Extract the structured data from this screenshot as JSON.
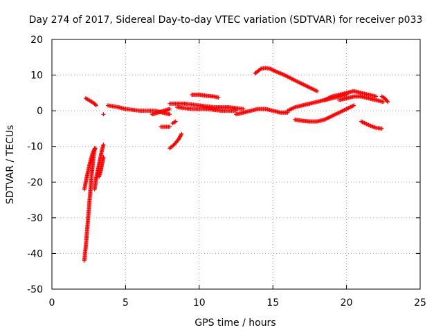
{
  "chart_data": {
    "type": "scatter",
    "title": "Day 274 of 2017, Sidereal Day-to-day VTEC variation (SDTVAR) for receiver p033",
    "xlabel": "GPS time / hours",
    "ylabel": "SDTVAR / TECUs",
    "xlim": [
      0,
      25
    ],
    "ylim": [
      -50,
      20
    ],
    "xticks": [
      "0",
      "5",
      "10",
      "15",
      "20",
      "25"
    ],
    "yticks": [
      "20",
      "10",
      "0",
      "-10",
      "-20",
      "-30",
      "-40",
      "-50"
    ],
    "grid": true,
    "legend": "none",
    "marker": "plus",
    "color": "#ff0000",
    "segments": [
      {
        "x": [
          2.2,
          2.3,
          2.4,
          2.5,
          2.6,
          2.7,
          2.8,
          2.9
        ],
        "y": [
          -42,
          -38,
          -33,
          -28,
          -23,
          -18,
          -14,
          -10.5
        ]
      },
      {
        "x": [
          2.2,
          2.35,
          2.5,
          2.65,
          2.8,
          2.95
        ],
        "y": [
          -22,
          -19,
          -16,
          -13.5,
          -11.5,
          -10.5
        ]
      },
      {
        "x": [
          2.9,
          3.0,
          3.1,
          3.2,
          3.3,
          3.4,
          3.5
        ],
        "y": [
          -22,
          -19,
          -17,
          -15,
          -13,
          -11,
          -9.5
        ]
      },
      {
        "x": [
          3.2,
          3.3,
          3.4,
          3.5
        ],
        "y": [
          -18.5,
          -17,
          -15,
          -13
        ]
      },
      {
        "x": [
          3.5
        ],
        "y": [
          -1
        ]
      },
      {
        "x": [
          2.3,
          2.5,
          2.7,
          2.9,
          3.0
        ],
        "y": [
          3.5,
          3,
          2.5,
          2,
          1.5
        ]
      },
      {
        "x": [
          3.8,
          4.5,
          5.0,
          6.0,
          7.0,
          7.5,
          8.0
        ],
        "y": [
          1.5,
          1,
          0.5,
          0,
          0,
          -0.5,
          -1
        ]
      },
      {
        "x": [
          6.8,
          7.2,
          7.6,
          8.0
        ],
        "y": [
          -1,
          -0.5,
          0,
          0.5
        ]
      },
      {
        "x": [
          7.4,
          7.7,
          8.0
        ],
        "y": [
          -4.5,
          -4.5,
          -4.5
        ]
      },
      {
        "x": [
          8.0,
          8.3,
          8.6,
          8.8
        ],
        "y": [
          -10.5,
          -9.5,
          -8,
          -6.5
        ]
      },
      {
        "x": [
          8.2,
          8.4
        ],
        "y": [
          -3.5,
          -3
        ]
      },
      {
        "x": [
          8.0,
          9.0,
          10.0,
          11.0,
          12.0,
          13.0
        ],
        "y": [
          2,
          2,
          1.5,
          1,
          1,
          0.5
        ]
      },
      {
        "x": [
          8.5,
          9.5,
          10.5,
          11.5,
          12.5
        ],
        "y": [
          1,
          0.5,
          0.5,
          0,
          0
        ]
      },
      {
        "x": [
          9.5,
          10.0,
          10.5,
          11.0,
          11.3
        ],
        "y": [
          4.5,
          4.5,
          4.2,
          4,
          3.7
        ]
      },
      {
        "x": [
          12.5,
          13.0,
          13.5,
          14.0,
          14.5,
          15.0,
          15.5,
          16.0
        ],
        "y": [
          -1,
          -0.5,
          0,
          0.5,
          0.5,
          0,
          -0.5,
          -0.5
        ]
      },
      {
        "x": [
          13.8,
          14.2,
          14.5,
          14.8,
          15.2,
          15.8,
          16.5,
          17.0,
          17.5,
          18.0
        ],
        "y": [
          10.5,
          11.8,
          12,
          11.8,
          11,
          10,
          8.5,
          7.5,
          6.5,
          5.5
        ]
      },
      {
        "x": [
          16.0,
          16.5,
          17.0,
          17.5,
          18.0,
          18.5,
          19.0,
          19.5,
          20.0
        ],
        "y": [
          0,
          1,
          1.5,
          2,
          2.5,
          3,
          3.5,
          4,
          4.5
        ]
      },
      {
        "x": [
          16.5,
          17.0,
          17.5,
          18.0,
          18.5,
          19.0,
          19.5,
          20.0,
          20.5
        ],
        "y": [
          -2.5,
          -2.8,
          -3,
          -3,
          -2.5,
          -1.5,
          -0.5,
          0.5,
          1.5
        ]
      },
      {
        "x": [
          18.5,
          19.0,
          19.5,
          20.0,
          20.5,
          21.0,
          21.5,
          22.0
        ],
        "y": [
          3,
          4,
          4.5,
          5,
          5.5,
          5,
          4.5,
          4
        ]
      },
      {
        "x": [
          19.5,
          20.0,
          20.5,
          21.0,
          21.5,
          22.0,
          22.5
        ],
        "y": [
          3,
          3.5,
          4,
          4,
          3.5,
          3,
          2.5
        ]
      },
      {
        "x": [
          21.0,
          21.5,
          22.0,
          22.4
        ],
        "y": [
          -3,
          -4,
          -4.8,
          -5
        ]
      },
      {
        "x": [
          22.4,
          22.6,
          22.8
        ],
        "y": [
          4,
          3.5,
          2.5
        ]
      }
    ]
  }
}
